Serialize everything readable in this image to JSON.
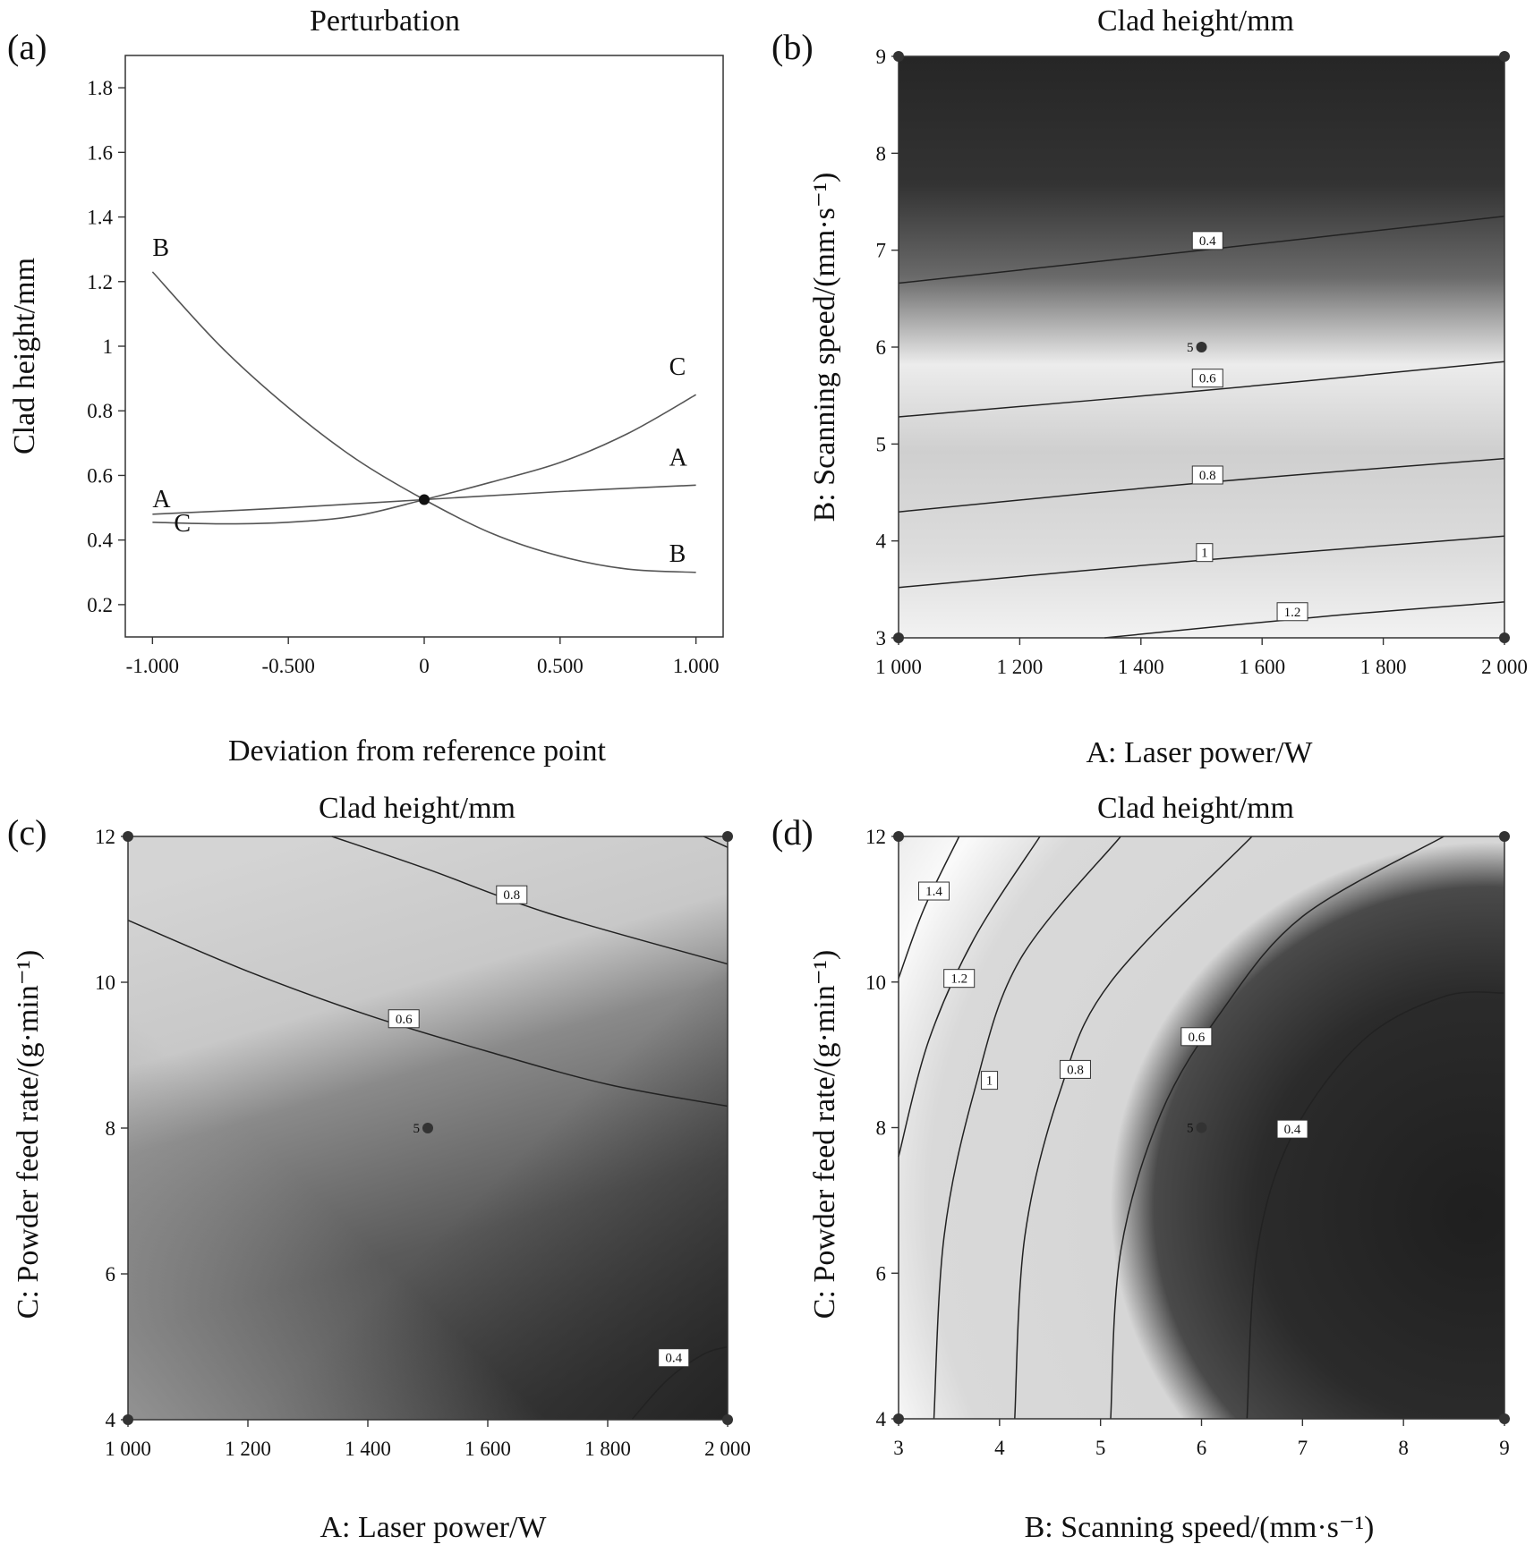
{
  "chart_data": [
    {
      "panel_label": "(a)",
      "type": "line",
      "title": "Perturbation",
      "xlabel": "Deviation from  reference point",
      "ylabel": "Clad height/mm",
      "xlim": [
        -1.1,
        1.1
      ],
      "ylim": [
        0.1,
        1.9
      ],
      "x_ticks": [
        "-1.000",
        "-0.500",
        "0",
        "0.500",
        "1.000"
      ],
      "x_tick_values": [
        -1,
        -0.5,
        0,
        0.5,
        1
      ],
      "y_ticks": [
        "0.2",
        "0.4",
        "0.6",
        "0.8",
        "1",
        "1.2",
        "1.4",
        "1.6",
        "1.8"
      ],
      "y_tick_values": [
        0.2,
        0.4,
        0.6,
        0.8,
        1.0,
        1.2,
        1.4,
        1.6,
        1.8
      ],
      "reference_point": {
        "x": 0,
        "y": 0.525
      },
      "series": [
        {
          "name": "A",
          "x": [
            -1,
            -0.5,
            0,
            0.5,
            1
          ],
          "values": [
            0.48,
            0.5,
            0.525,
            0.55,
            0.57
          ],
          "label_start": "A",
          "label_end": "A"
        },
        {
          "name": "B",
          "x": [
            -1,
            -0.75,
            -0.5,
            -0.25,
            0,
            0.25,
            0.5,
            0.75,
            1
          ],
          "values": [
            1.23,
            1.0,
            0.81,
            0.65,
            0.525,
            0.42,
            0.35,
            0.31,
            0.3
          ],
          "label_start": "B",
          "label_end": "B"
        },
        {
          "name": "C",
          "x": [
            -1,
            -0.75,
            -0.5,
            -0.25,
            0,
            0.25,
            0.5,
            0.75,
            1
          ],
          "values": [
            0.455,
            0.45,
            0.455,
            0.475,
            0.525,
            0.58,
            0.64,
            0.73,
            0.85
          ],
          "label_start": "C",
          "label_end": "C"
        }
      ]
    },
    {
      "panel_label": "(b)",
      "type": "contour",
      "title": "Clad height/mm",
      "xlabel": "A: Laser power/W",
      "ylabel": "B: Scanning speed/(mm·s⁻¹)",
      "xlim": [
        1000,
        2000
      ],
      "ylim": [
        3,
        9
      ],
      "x_ticks": [
        "1 000",
        "1 200",
        "1 400",
        "1 600",
        "1 800",
        "2 000"
      ],
      "x_tick_values": [
        1000,
        1200,
        1400,
        1600,
        1800,
        2000
      ],
      "y_ticks": [
        "3",
        "4",
        "5",
        "6",
        "7",
        "8",
        "9"
      ],
      "y_tick_values": [
        3,
        4,
        5,
        6,
        7,
        8,
        9
      ],
      "center_point": {
        "label": "5",
        "x": 1500,
        "y": 6
      },
      "corner_points": [
        [
          1000,
          3
        ],
        [
          1000,
          9
        ],
        [
          2000,
          3
        ],
        [
          2000,
          9
        ]
      ],
      "contours": [
        {
          "level": "0.4",
          "points": [
            [
              1000,
              6.66
            ],
            [
              1500,
              7.0
            ],
            [
              2000,
              7.35
            ]
          ],
          "label_at": [
            1510,
            7.1
          ]
        },
        {
          "level": "0.6",
          "points": [
            [
              1000,
              5.28
            ],
            [
              1500,
              5.55
            ],
            [
              2000,
              5.85
            ]
          ],
          "label_at": [
            1510,
            5.68
          ]
        },
        {
          "level": "0.8",
          "points": [
            [
              1000,
              4.3
            ],
            [
              1500,
              4.6
            ],
            [
              2000,
              4.85
            ]
          ],
          "label_at": [
            1510,
            4.68
          ]
        },
        {
          "level": "1",
          "points": [
            [
              1000,
              3.52
            ],
            [
              1500,
              3.8
            ],
            [
              2000,
              4.05
            ]
          ],
          "label_at": [
            1505,
            3.88
          ]
        },
        {
          "level": "1.2",
          "points": [
            [
              1340,
              3.0
            ],
            [
              1700,
              3.22
            ],
            [
              2000,
              3.37
            ]
          ],
          "label_at": [
            1650,
            3.27
          ]
        }
      ]
    },
    {
      "panel_label": "(c)",
      "type": "contour",
      "title": "Clad height/mm",
      "xlabel": "A: Laser power/W",
      "ylabel": "C: Powder feed rate/(g·min⁻¹)",
      "xlim": [
        1000,
        2000
      ],
      "ylim": [
        4,
        12
      ],
      "x_ticks": [
        "1 000",
        "1 200",
        "1 400",
        "1 600",
        "1 800",
        "2 000"
      ],
      "x_tick_values": [
        1000,
        1200,
        1400,
        1600,
        1800,
        2000
      ],
      "y_ticks": [
        "4",
        "6",
        "8",
        "10",
        "12"
      ],
      "y_tick_values": [
        4,
        6,
        8,
        10,
        12
      ],
      "center_point": {
        "label": "5",
        "x": 1500,
        "y": 8
      },
      "corner_points": [
        [
          1000,
          4
        ],
        [
          1000,
          12
        ],
        [
          2000,
          4
        ],
        [
          2000,
          12
        ]
      ],
      "contours": [
        {
          "level": "0.8",
          "points": [
            [
              1340,
              12.0
            ],
            [
              1500,
              11.55
            ],
            [
              1700,
              10.95
            ],
            [
              2000,
              10.25
            ]
          ],
          "label_at": [
            1640,
            11.2
          ]
        },
        {
          "level": "0.6",
          "points": [
            [
              1000,
              10.85
            ],
            [
              1200,
              10.15
            ],
            [
              1400,
              9.55
            ],
            [
              1600,
              9.05
            ],
            [
              1800,
              8.6
            ],
            [
              2000,
              8.3
            ]
          ],
          "label_at": [
            1460,
            9.5
          ]
        },
        {
          "level": "0.4",
          "points": [
            [
              1840,
              4.0
            ],
            [
              1900,
              4.55
            ],
            [
              1960,
              4.9
            ],
            [
              2000,
              5.0
            ]
          ],
          "label_at": [
            1910,
            4.85
          ]
        },
        {
          "level": "",
          "points": [
            [
              1960,
              12.0
            ],
            [
              2000,
              11.85
            ]
          ],
          "label_at": null
        }
      ]
    },
    {
      "panel_label": "(d)",
      "type": "contour",
      "title": "Clad height/mm",
      "xlabel": "B: Scanning speed/(mm·s⁻¹)",
      "ylabel": "C: Powder feed rate/(g·min⁻¹)",
      "xlim": [
        3,
        9
      ],
      "ylim": [
        4,
        12
      ],
      "x_ticks": [
        "3",
        "4",
        "5",
        "6",
        "7",
        "8",
        "9"
      ],
      "x_tick_values": [
        3,
        4,
        5,
        6,
        7,
        8,
        9
      ],
      "y_ticks": [
        "4",
        "6",
        "8",
        "10",
        "12"
      ],
      "y_tick_values": [
        4,
        6,
        8,
        10,
        12
      ],
      "center_point": {
        "label": "5",
        "x": 6,
        "y": 8
      },
      "corner_points": [
        [
          3,
          4
        ],
        [
          3,
          12
        ],
        [
          9,
          4
        ],
        [
          9,
          12
        ]
      ],
      "contours": [
        {
          "level": "1.4",
          "points": [
            [
              3.0,
              10.05
            ],
            [
              3.25,
              11.0
            ],
            [
              3.6,
              12.0
            ]
          ],
          "label_at": [
            3.35,
            11.25
          ]
        },
        {
          "level": "1.2",
          "points": [
            [
              3.0,
              7.6
            ],
            [
              3.3,
              9.2
            ],
            [
              3.75,
              10.6
            ],
            [
              4.4,
              12.0
            ]
          ],
          "label_at": [
            3.6,
            10.05
          ]
        },
        {
          "level": "1",
          "points": [
            [
              3.35,
              4.0
            ],
            [
              3.45,
              6.5
            ],
            [
              3.75,
              8.5
            ],
            [
              4.2,
              10.3
            ],
            [
              5.2,
              12.0
            ]
          ],
          "label_at": [
            3.9,
            8.65
          ]
        },
        {
          "level": "0.8",
          "points": [
            [
              4.15,
              4.0
            ],
            [
              4.25,
              6.5
            ],
            [
              4.6,
              8.5
            ],
            [
              5.1,
              10.0
            ],
            [
              6.5,
              12.0
            ]
          ],
          "label_at": [
            4.75,
            8.8
          ]
        },
        {
          "level": "0.6",
          "points": [
            [
              5.1,
              4.0
            ],
            [
              5.2,
              6.3
            ],
            [
              5.6,
              8.2
            ],
            [
              6.2,
              9.6
            ],
            [
              7.0,
              10.9
            ],
            [
              8.4,
              12.0
            ]
          ],
          "label_at": [
            5.95,
            9.25
          ]
        },
        {
          "level": "0.4",
          "points": [
            [
              6.45,
              4.0
            ],
            [
              6.55,
              6.3
            ],
            [
              6.9,
              7.9
            ],
            [
              7.6,
              9.2
            ],
            [
              8.4,
              9.8
            ],
            [
              9.0,
              9.85
            ]
          ],
          "label_at": [
            6.9,
            7.98
          ]
        }
      ]
    }
  ]
}
